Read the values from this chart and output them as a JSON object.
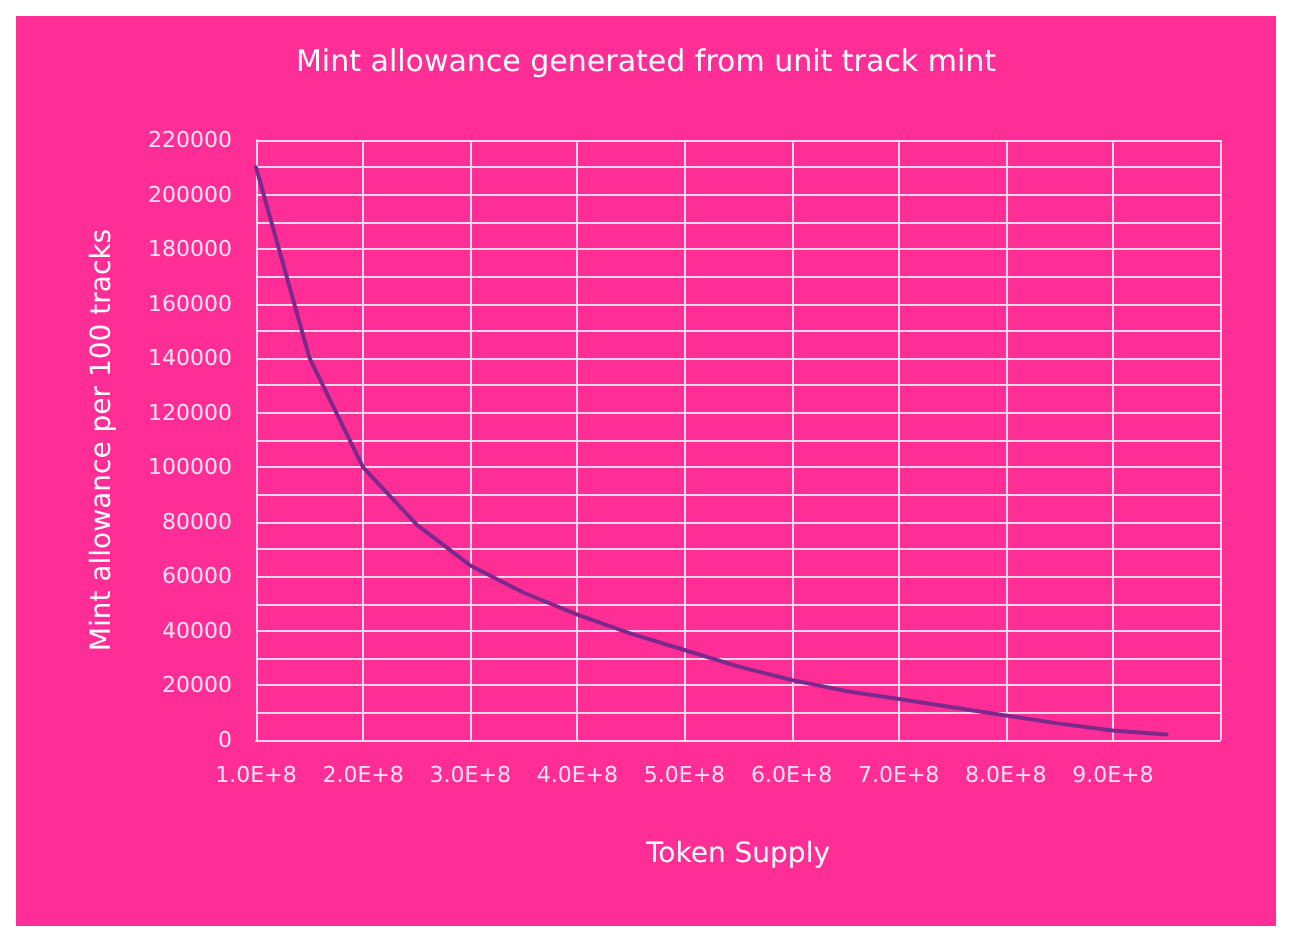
{
  "chart_data": {
    "type": "line",
    "title": "Mint allowance generated from unit track mint",
    "xlabel": "Token Supply",
    "ylabel": "Mint allowance per 100 tracks",
    "x": [
      100000000,
      150000000,
      200000000,
      250000000,
      300000000,
      350000000,
      400000000,
      450000000,
      500000000,
      550000000,
      600000000,
      650000000,
      700000000,
      750000000,
      800000000,
      850000000,
      900000000,
      950000000
    ],
    "series": [
      {
        "color": "#7b2a8c",
        "values": [
          210000,
          140000,
          100000,
          79000,
          64000,
          54000,
          46000,
          39000,
          33000,
          27000,
          22000,
          18000,
          15000,
          12000,
          9000,
          6000,
          3500,
          2000
        ]
      }
    ],
    "xlim": [
      100000000,
      1000000000
    ],
    "xticks": [
      {
        "value": 100000000,
        "label": "1.0E+8"
      },
      {
        "value": 200000000,
        "label": "2.0E+8"
      },
      {
        "value": 300000000,
        "label": "3.0E+8"
      },
      {
        "value": 400000000,
        "label": "4.0E+8"
      },
      {
        "value": 500000000,
        "label": "5.0E+8"
      },
      {
        "value": 600000000,
        "label": "6.0E+8"
      },
      {
        "value": 700000000,
        "label": "7.0E+8"
      },
      {
        "value": 800000000,
        "label": "8.0E+8"
      },
      {
        "value": 900000000,
        "label": "9.0E+8"
      },
      {
        "value": 1000000000,
        "label": null
      }
    ],
    "ylim": [
      0,
      220000
    ],
    "yticks": [
      0,
      {
        "value": 10000,
        "label": null
      },
      20000,
      {
        "value": 30000,
        "label": null
      },
      40000,
      {
        "value": 50000,
        "label": null
      },
      60000,
      {
        "value": 70000,
        "label": null
      },
      80000,
      {
        "value": 90000,
        "label": null
      },
      100000,
      {
        "value": 110000,
        "label": null
      },
      120000,
      {
        "value": 130000,
        "label": null
      },
      140000,
      {
        "value": 150000,
        "label": null
      },
      160000,
      {
        "value": 170000,
        "label": null
      },
      180000,
      {
        "value": 190000,
        "label": null
      },
      200000,
      {
        "value": 210000,
        "label": null
      },
      220000
    ],
    "grid": true,
    "marker": "none",
    "line_style": "solid"
  }
}
